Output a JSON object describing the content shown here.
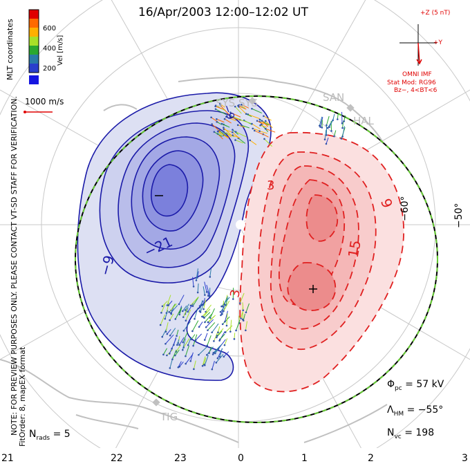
{
  "title": "16/Apr/2003 12:00–12:02 UT",
  "side_notes": {
    "mlt": "MLT coordinates",
    "preview": "NOTE: FOR PREVIEW PURPOSES ONLY. PLEASE CONTACT VT-SD STAFF FOR VERIFICATION.",
    "fitorder": "FitOrder: 8, mapEX format"
  },
  "colorbar": {
    "label": "Vel [m/s]",
    "ticks": [
      "600",
      "400",
      "200"
    ],
    "colors": [
      "#e00000",
      "#ff6a00",
      "#ffb000",
      "#a8e028",
      "#2aa830",
      "#2a7aa8",
      "#2a3fcc",
      "#1515e0"
    ]
  },
  "ref_vector": "1000 m/s",
  "imf": {
    "z_label": "+Z (5 nT)",
    "y_label": "+Y",
    "source": "OMNI IMF",
    "stat_mod": "Stat Mod: RG96",
    "condition": "Bz−, 4<BT<6"
  },
  "stats": {
    "phi_pc": "= 57 kV",
    "lambda_hm": "= −55°",
    "n_vc": "= 198",
    "n_rads": "= 5"
  },
  "contour_labels": {
    "neg": [
      "−9",
      "−21"
    ],
    "pos": [
      "3",
      "3",
      "9",
      "15"
    ]
  },
  "extrema": {
    "min": "−",
    "max": "+"
  },
  "mlat_labels": [
    "−60°",
    "−50°"
  ],
  "hour_labels": [
    "21",
    "22",
    "23",
    "0",
    "1",
    "2",
    "3"
  ],
  "sites": [
    "SYS",
    "SAN",
    "HAL",
    "TIG"
  ],
  "colors": {
    "negative": "#1a1aa8",
    "positive": "#e02020",
    "hmb": "#66cc33"
  }
}
